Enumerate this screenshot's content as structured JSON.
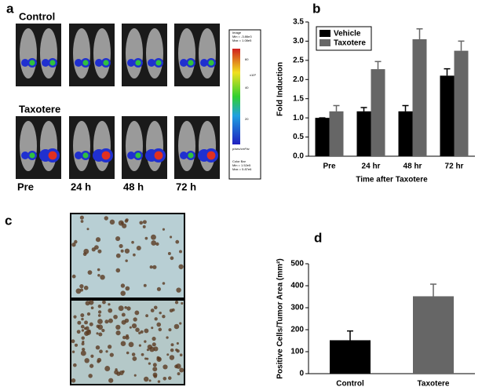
{
  "panels": {
    "a": "a",
    "b": "b",
    "c": "c",
    "d": "d"
  },
  "imaging": {
    "rows": [
      "Control",
      "Taxotere"
    ],
    "timepoints": [
      "Pre",
      "24 h",
      "48 h",
      "72 h"
    ],
    "colorbar": {
      "ticks": [
        "60",
        "40",
        "20"
      ],
      "unit": "x10⁶",
      "image": "Image",
      "image_min": "Min = -3.86e3",
      "image_max": "Max = 1.08e5",
      "radiance": "p/sec/cm²/sr",
      "bar": "Color Bar",
      "bar_min": "Min = 1.52e5",
      "bar_max": "Max = 5.87e6"
    }
  },
  "chart_data": [
    {
      "type": "bar",
      "y_label": "Fold Induction",
      "x_label": "Time after Taxotere",
      "categories": [
        "Pre",
        "24 hr",
        "48 hr",
        "72 hr"
      ],
      "series": [
        {
          "name": "Vehicle",
          "color": "#000000",
          "values": [
            1.0,
            1.17,
            1.17,
            2.1
          ],
          "errors": [
            0,
            0.1,
            0.15,
            0.18
          ]
        },
        {
          "name": "Taxotere",
          "color": "#666666",
          "values": [
            1.17,
            2.27,
            3.05,
            2.75
          ],
          "errors": [
            0.15,
            0.2,
            0.27,
            0.25
          ]
        }
      ],
      "ylim": [
        0,
        3.5
      ],
      "yticks": [
        {
          "value": 0,
          "label": "0.0"
        },
        0.5,
        {
          "value": 1,
          "label": "1.0"
        },
        1.5,
        {
          "value": 2,
          "label": "2.0"
        },
        2.5,
        {
          "value": 3,
          "label": "3.0"
        },
        3.5
      ],
      "legend": "top-left"
    },
    {
      "type": "bar",
      "y_label": "Positive Cells/Tumor Area (mm²)",
      "categories": [
        "Control",
        "Taxotere"
      ],
      "series": [
        {
          "color": "#000000",
          "colors": [
            "#000000",
            "#666666"
          ],
          "values": [
            152,
            352
          ],
          "errors": [
            42,
            55
          ]
        }
      ],
      "ylim": [
        0,
        500
      ],
      "yticks": [
        0,
        100,
        200,
        300,
        400,
        500
      ]
    }
  ]
}
